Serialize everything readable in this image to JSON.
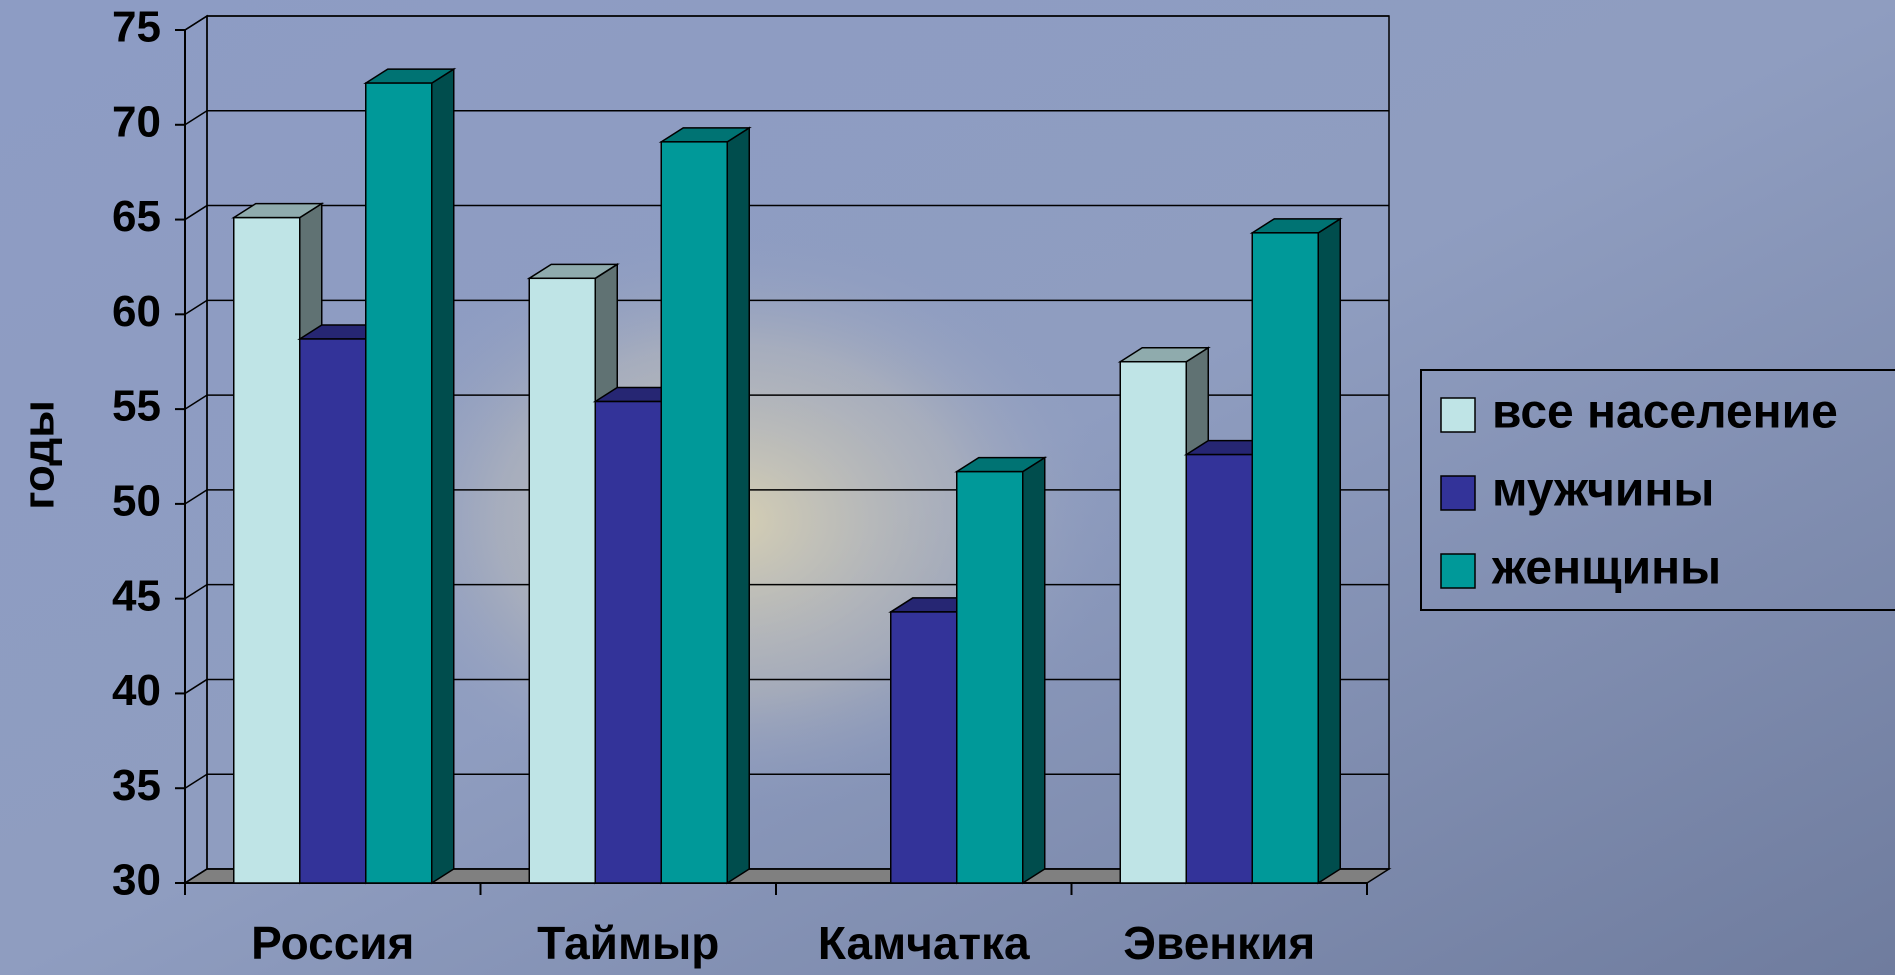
{
  "chart_data": {
    "type": "bar3d",
    "y_label": "годы",
    "categories": [
      "Россия",
      "Таймыр",
      "Камчатка",
      "Эвенкия"
    ],
    "series": [
      {
        "name": "все население",
        "color": "#bfe4e6",
        "values": [
          65.1,
          61.9,
          null,
          57.5
        ]
      },
      {
        "name": "мужчины",
        "color": "#333399",
        "values": [
          58.7,
          55.4,
          44.3,
          52.6
        ]
      },
      {
        "name": "женщины",
        "color": "#009999",
        "values": [
          72.2,
          69.1,
          51.7,
          64.3
        ]
      }
    ],
    "ylim": [
      30,
      75
    ],
    "yticks": [
      30,
      35,
      40,
      45,
      50,
      55,
      60,
      65,
      70,
      75
    ],
    "grid": true,
    "legend": "right"
  }
}
